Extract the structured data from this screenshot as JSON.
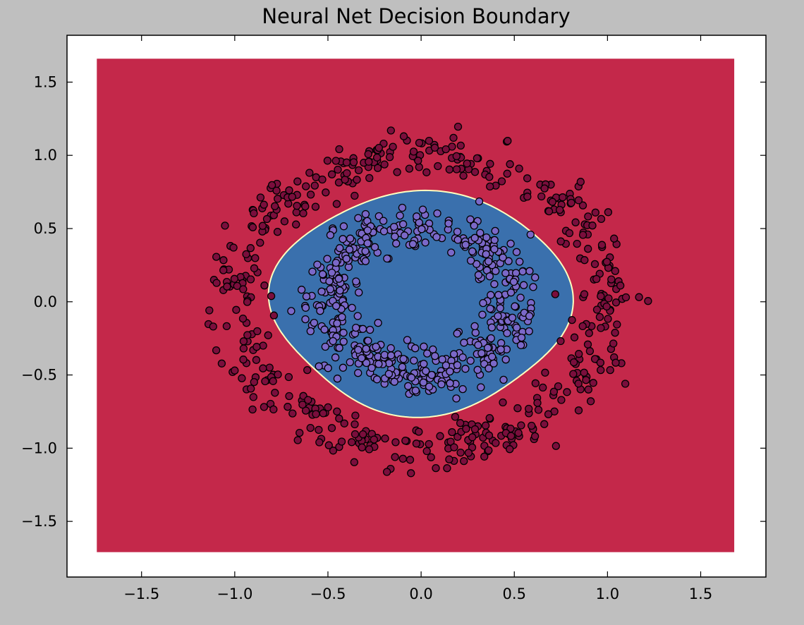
{
  "chart_data": {
    "type": "scatter",
    "title": "Neural Net Decision Boundary",
    "xlabel": "",
    "ylabel": "",
    "xlim": [
      -1.9,
      1.85
    ],
    "ylim": [
      -1.88,
      1.82
    ],
    "xticks": [
      -1.5,
      -1.0,
      -0.5,
      0.0,
      0.5,
      1.0,
      1.5
    ],
    "yticks": [
      -1.5,
      -1.0,
      -0.5,
      0.0,
      0.5,
      1.0,
      1.5
    ],
    "xtick_labels": [
      "−1.5",
      "−1.0",
      "−0.5",
      "0.0",
      "0.5",
      "1.0",
      "1.5"
    ],
    "ytick_labels": [
      "−1.5",
      "−1.0",
      "−0.5",
      "0.0",
      "0.5",
      "1.0",
      "1.5"
    ],
    "grid": false,
    "legend": "none",
    "background_region": {
      "x_range": [
        -1.74,
        1.68
      ],
      "y_range": [
        -1.71,
        1.66
      ],
      "class": 0,
      "color": "#c4284a"
    },
    "decision_boundary": {
      "class": 1,
      "color": "#3a70ad",
      "edge_color": "#ffffbf",
      "center": [
        0.0,
        0.0
      ],
      "radius_x": 0.79,
      "radius_y": 0.75
    },
    "point_colors": {
      "class0": "#7a0e3c",
      "class1": "#7b68c8",
      "edge": "#000000"
    },
    "series": [
      {
        "class": 0,
        "description": "outer ring",
        "count": 500,
        "radius": 1.0,
        "noise": 0.08
      },
      {
        "class": 1,
        "description": "inner ring",
        "count": 500,
        "radius": 0.5,
        "noise": 0.08
      }
    ]
  }
}
